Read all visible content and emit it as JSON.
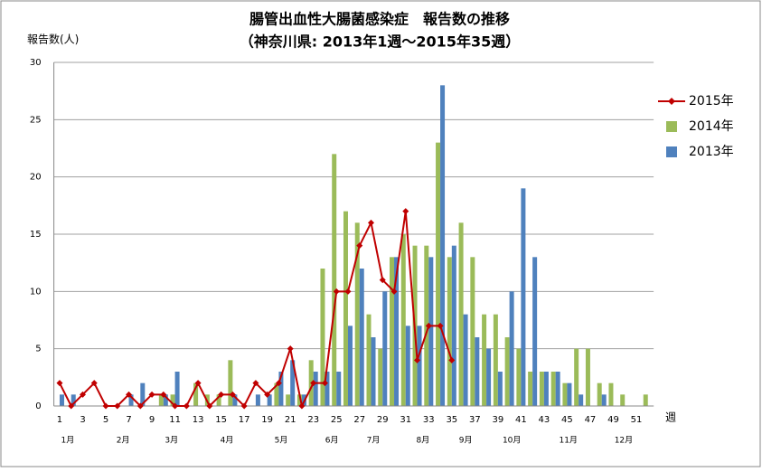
{
  "chart_data": {
    "type": "bar",
    "title": "腸管出血性大腸菌感染症　報告数の推移",
    "subtitle": "（神奈川県: 2013年1週～2015年35週）",
    "y_label": "報告数(人)",
    "x_label": "週",
    "categories": [
      1,
      null,
      3,
      null,
      5,
      null,
      7,
      null,
      9,
      null,
      11,
      null,
      13,
      null,
      15,
      null,
      17,
      null,
      19,
      null,
      21,
      null,
      23,
      null,
      25,
      null,
      27,
      null,
      29,
      null,
      31,
      null,
      33,
      null,
      35,
      null,
      37,
      null,
      39,
      null,
      41,
      null,
      43,
      null,
      45,
      null,
      47,
      null,
      49,
      null,
      51,
      null
    ],
    "month_ticks": [
      {
        "value": 1.7,
        "label": "1月"
      },
      {
        "value": 6.5,
        "label": "2月"
      },
      {
        "value": 10.7,
        "label": "3月"
      },
      {
        "value": 15.5,
        "label": "4月"
      },
      {
        "value": 20.2,
        "label": "5月"
      },
      {
        "value": 24.6,
        "label": "6月"
      },
      {
        "value": 28.2,
        "label": "7月"
      },
      {
        "value": 32.5,
        "label": "8月"
      },
      {
        "value": 36.2,
        "label": "9月"
      },
      {
        "value": 40.2,
        "label": "10月"
      },
      {
        "value": 45.1,
        "label": "11月"
      },
      {
        "value": 49.9,
        "label": "12月"
      }
    ],
    "ylim": [
      0,
      30
    ],
    "yticks": [
      0,
      5,
      10,
      15,
      20,
      25,
      30
    ],
    "grid": true,
    "legend": "right",
    "series": [
      {
        "name": "2015年",
        "type": "line",
        "color": "#c00000",
        "values": [
          2,
          0,
          1,
          2,
          0,
          0,
          1,
          0,
          1,
          1,
          0,
          0,
          2,
          0,
          1,
          1,
          0,
          2,
          1,
          2,
          5,
          0,
          2,
          2,
          10,
          10,
          14,
          16,
          11,
          10,
          17,
          4,
          7,
          7,
          4,
          null,
          null,
          null,
          null,
          null,
          null,
          null,
          null,
          null,
          null,
          null,
          null,
          null,
          null,
          null,
          null,
          null
        ]
      },
      {
        "name": "2014年",
        "type": "bar",
        "color": "#9bbb59",
        "values": [
          0,
          0,
          0,
          0,
          0,
          0,
          0,
          0,
          0,
          1,
          1,
          0,
          2,
          1,
          1,
          4,
          0,
          0,
          0,
          2,
          1,
          1,
          4,
          12,
          22,
          17,
          16,
          8,
          5,
          13,
          15,
          14,
          14,
          23,
          13,
          16,
          13,
          8,
          8,
          6,
          5,
          3,
          3,
          3,
          2,
          5,
          5,
          2,
          2,
          1,
          0,
          1
        ]
      },
      {
        "name": "2013年",
        "type": "bar",
        "color": "#4f81bd",
        "values": [
          1,
          1,
          0,
          0,
          0,
          0,
          1,
          2,
          0,
          1,
          3,
          0,
          0,
          0,
          0,
          1,
          0,
          1,
          1,
          3,
          4,
          1,
          3,
          3,
          3,
          7,
          12,
          6,
          10,
          13,
          7,
          7,
          13,
          28,
          14,
          8,
          6,
          5,
          3,
          10,
          19,
          13,
          3,
          3,
          2,
          1,
          0,
          1,
          0,
          0,
          0,
          0
        ]
      }
    ]
  }
}
